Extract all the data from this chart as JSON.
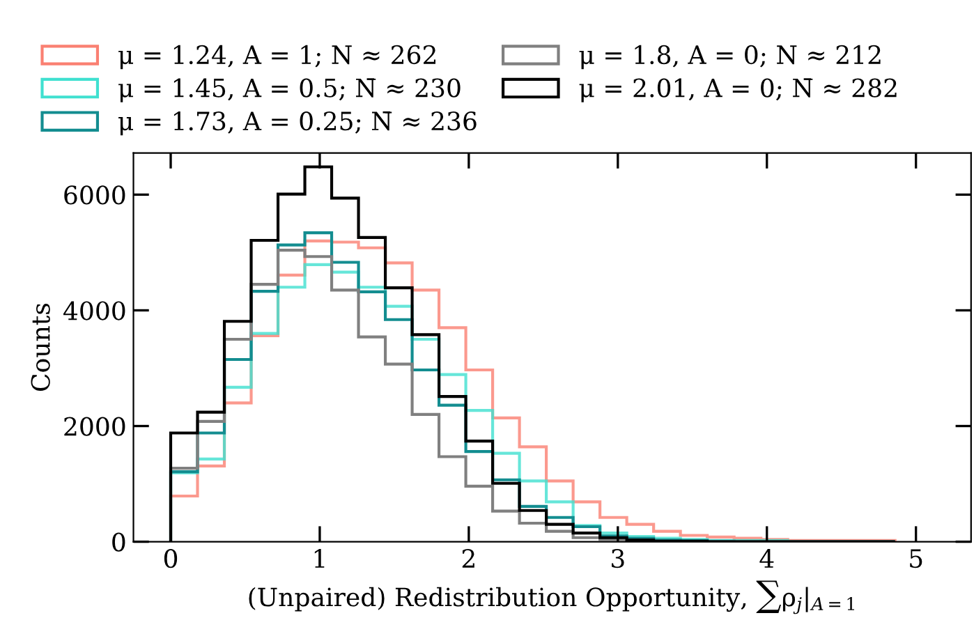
{
  "chart_data": {
    "type": "histogram",
    "xlabel": "(Unpaired) Redistribution Opportunity, ∑ρ$_{j}$|$_{A=1}$",
    "ylabel": "Counts",
    "bins": [
      0,
      0.18,
      0.36,
      0.54,
      0.72,
      0.9,
      1.08,
      1.26,
      1.44,
      1.62,
      1.8,
      1.98,
      2.16,
      2.34,
      2.52,
      2.7,
      2.88,
      3.06,
      3.24,
      3.42,
      3.6,
      3.78,
      3.96,
      4.14,
      4.32,
      4.5,
      4.68,
      4.86
    ],
    "series": [
      {
        "name": "μ = 1.24, A = 1; N ≈ 262",
        "color": "#fa8072",
        "values": [
          790,
          1310,
          2400,
          3560,
          4610,
          5200,
          5180,
          5080,
          4820,
          4350,
          3700,
          2970,
          2140,
          1640,
          1050,
          690,
          420,
          300,
          180,
          110,
          80,
          60,
          40,
          20,
          20,
          20,
          20
        ]
      },
      {
        "name": "μ = 1.45, A = 0.5; N̄ ≈ 230",
        "color": "#40e0d0",
        "values": [
          1190,
          1430,
          2670,
          3600,
          4400,
          4790,
          4660,
          4400,
          4070,
          3500,
          2890,
          2270,
          1530,
          1050,
          690,
          280,
          150,
          90,
          60,
          40,
          20,
          20,
          20,
          0,
          0,
          0,
          0
        ]
      },
      {
        "name": "μ = 1.73, A = 0.25; N̄ ≈ 236",
        "color": "#138d90",
        "values": [
          1210,
          1880,
          3150,
          4330,
          5130,
          5340,
          4830,
          4320,
          3840,
          2970,
          2360,
          1560,
          1070,
          610,
          420,
          260,
          100,
          60,
          30,
          20,
          10,
          0,
          0,
          0,
          0,
          0,
          0
        ]
      },
      {
        "name": "μ = 1.8, A = 0; N ≈ 212",
        "color": "#808080",
        "values": [
          1270,
          2080,
          3500,
          4450,
          5040,
          4930,
          4350,
          3540,
          3070,
          2200,
          1470,
          960,
          530,
          320,
          180,
          70,
          40,
          20,
          10,
          0,
          0,
          0,
          0,
          0,
          0,
          0,
          0
        ]
      },
      {
        "name": "μ = 2.01, A = 0; N̄ ≈ 282",
        "color": "#000000",
        "values": [
          1880,
          2240,
          3810,
          5210,
          6010,
          6480,
          5940,
          5260,
          4390,
          3580,
          2510,
          1740,
          1010,
          540,
          300,
          150,
          70,
          30,
          10,
          10,
          0,
          0,
          0,
          0,
          0,
          0,
          0
        ]
      }
    ],
    "xlim": [
      -0.25,
      5.37
    ],
    "ylim": [
      0,
      6720
    ],
    "xticks": [
      0,
      1,
      2,
      3,
      4,
      5
    ],
    "yticks": [
      0,
      2000,
      4000,
      6000
    ],
    "grid": false,
    "legend": "top"
  }
}
